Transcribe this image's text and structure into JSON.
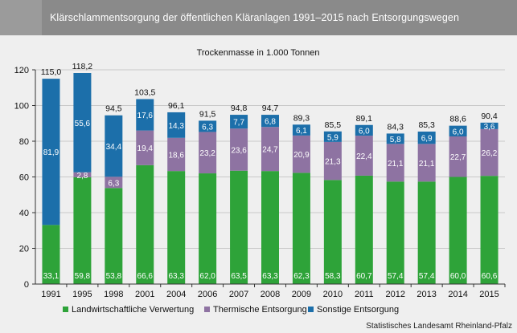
{
  "header": {
    "title": "Klärschlammentsorgung der öffentlichen Kläranlagen 1991–2015 nach Entsorgungswegen"
  },
  "source": "Statistisches Landesamt Rheinland-Pfalz",
  "chart_data": {
    "type": "bar",
    "stacked": true,
    "subtitle": "Trockenmasse in 1.000 Tonnen",
    "ylim": [
      0,
      120
    ],
    "yticks": [
      0,
      20,
      40,
      60,
      80,
      100,
      120
    ],
    "grid": true,
    "legend_position": "bottom",
    "categories": [
      "1991",
      "1995",
      "1998",
      "2001",
      "2004",
      "2006",
      "2007",
      "2008",
      "2009",
      "2010",
      "2011",
      "2012",
      "2013",
      "2014",
      "2015"
    ],
    "series": [
      {
        "name": "Landwirtschaftliche Verwertung",
        "color": "#2ea339",
        "values": [
          33.1,
          59.8,
          53.8,
          66.6,
          63.3,
          62.0,
          63.5,
          63.3,
          62.3,
          58.3,
          60.7,
          57.4,
          57.4,
          60.0,
          60.6
        ]
      },
      {
        "name": "Thermische Entsorgung",
        "color": "#8e73a2",
        "values": [
          null,
          2.8,
          6.3,
          19.4,
          18.6,
          23.2,
          23.6,
          24.7,
          20.9,
          21.3,
          22.4,
          21.1,
          21.1,
          22.7,
          26.2
        ]
      },
      {
        "name": "Sonstige Entsorgung",
        "color": "#1c6faa",
        "values": [
          81.9,
          55.6,
          34.4,
          17.6,
          14.3,
          6.3,
          7.7,
          6.8,
          6.1,
          5.9,
          6.0,
          5.8,
          6.9,
          6.0,
          3.6
        ]
      }
    ],
    "value_labels": [
      "33,1",
      "59,8",
      "53,8",
      "66,6",
      "63,3",
      "62,0",
      "63,5",
      "63,3",
      "62,3",
      "58,3",
      "60,7",
      "57,4",
      "57,4",
      "60,0",
      "60,6"
    ],
    "value_labels_thermal": [
      "",
      "2,8",
      "6,3",
      "19,4",
      "18,6",
      "23,2",
      "23,6",
      "24,7",
      "20,9",
      "21,3",
      "22,4",
      "21,1",
      "21,1",
      "22,7",
      "26,2"
    ],
    "value_labels_other": [
      "81,9",
      "55,6",
      "34,4",
      "17,6",
      "14,3",
      "6,3",
      "7,7",
      "6,8",
      "6,1",
      "5,9",
      "6,0",
      "5,8",
      "6,9",
      "6,0",
      "3,6"
    ],
    "totals": [
      115.0,
      118.2,
      94.5,
      103.5,
      96.1,
      91.5,
      94.8,
      94.7,
      89.3,
      85.5,
      89.1,
      84.3,
      85.3,
      88.6,
      90.4
    ],
    "total_labels": [
      "115,0",
      "118,2",
      "94,5",
      "103,5",
      "96,1",
      "91,5",
      "94,8",
      "94,7",
      "89,3",
      "85,5",
      "89,1",
      "84,3",
      "85,3",
      "88,6",
      "90,4"
    ]
  }
}
